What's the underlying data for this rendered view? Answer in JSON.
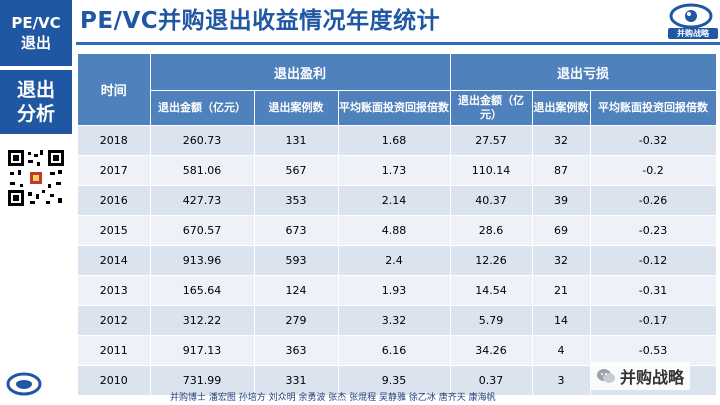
{
  "sidebar": {
    "tag_top_line1": "PE/VC",
    "tag_top_line2": "退出",
    "section_line1": "退出",
    "section_line2": "分析"
  },
  "header": {
    "title": "PE/VC并购退出收益情况年度统计",
    "brand": "并购战略"
  },
  "table": {
    "col_time": "时间",
    "group_profit": "退出盈利",
    "group_loss": "退出亏损",
    "sub_headers": [
      "退出金额（亿元）",
      "退出案例数",
      "平均账面投资回报倍数",
      "退出金额（亿元）",
      "退出案例数",
      "平均账面投资回报倍数"
    ],
    "rows": [
      [
        "2018",
        "260.73",
        "131",
        "1.68",
        "27.57",
        "32",
        "-0.32"
      ],
      [
        "2017",
        "581.06",
        "567",
        "1.73",
        "110.14",
        "87",
        "-0.2"
      ],
      [
        "2016",
        "427.73",
        "353",
        "2.14",
        "40.37",
        "39",
        "-0.26"
      ],
      [
        "2015",
        "670.57",
        "673",
        "4.88",
        "28.6",
        "69",
        "-0.23"
      ],
      [
        "2014",
        "913.96",
        "593",
        "2.4",
        "12.26",
        "32",
        "-0.12"
      ],
      [
        "2013",
        "165.64",
        "124",
        "1.93",
        "14.54",
        "21",
        "-0.31"
      ],
      [
        "2012",
        "312.22",
        "279",
        "3.32",
        "5.79",
        "14",
        "-0.17"
      ],
      [
        "2011",
        "917.13",
        "363",
        "6.16",
        "34.26",
        "4",
        "-0.53"
      ],
      [
        "2010",
        "731.99",
        "331",
        "9.35",
        "0.37",
        "3",
        ""
      ]
    ]
  },
  "footer": {
    "credits": "并购博士 潘宏图 孙培方 刘众明 余勇波 张杰 张焜程 吴静雅 徐乙冰 唐齐天 康海帆",
    "watermark": "并购战略"
  },
  "colors": {
    "brand_blue": "#1f57a3",
    "header_blue": "#4f81bd",
    "row_light": "#dbe3ef",
    "row_lighter": "#eef2f8"
  }
}
